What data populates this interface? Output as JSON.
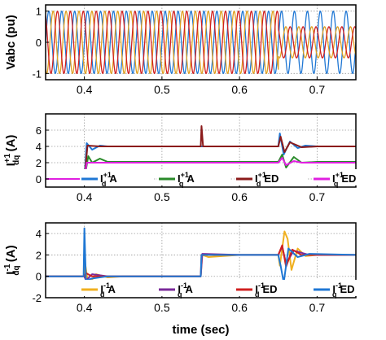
{
  "figure": {
    "xlabel": "time (sec)"
  },
  "chart_data": [
    {
      "type": "line",
      "ylabel": "Vabc (pu)",
      "xlim": [
        0.35,
        0.75
      ],
      "ylim": [
        -1.2,
        1.2
      ],
      "xticks": [
        0.4,
        0.5,
        0.6,
        0.7
      ],
      "yticks": [
        -1,
        0,
        1
      ],
      "grid": true,
      "legend": "none",
      "description": "three-phase sinusoidal voltages, amplitude 1 pu until 0.65 s, then unbalanced (one phase 1 pu, two phases about 0.5 pu)",
      "series": [
        {
          "color": "#1f77d4",
          "amplitude_before": 1.0,
          "amplitude_after": 1.0,
          "frequency_hz": 60,
          "phase_deg": 0
        },
        {
          "color": "#e0a020",
          "amplitude_before": 1.0,
          "amplitude_after": 0.5,
          "frequency_hz": 60,
          "phase_deg": -120
        },
        {
          "color": "#d02020",
          "amplitude_before": 1.0,
          "amplitude_after": 0.5,
          "frequency_hz": 60,
          "phase_deg": 120
        }
      ]
    },
    {
      "type": "line",
      "ylabel": "I",
      "ylabel_sub": "dq",
      "ylabel_sup": "+1",
      "ylabel_unit": "(A)",
      "xlim": [
        0.35,
        0.75
      ],
      "ylim": [
        -1,
        8
      ],
      "xticks": [
        0.4,
        0.5,
        0.6,
        0.7
      ],
      "yticks": [
        0,
        2,
        4,
        6
      ],
      "grid": true,
      "legend": "bottom",
      "series": [
        {
          "name_base": "I",
          "name_sub": "d",
          "name_sup": "+1",
          "name_suffix": "A",
          "color": "#1f77d4",
          "points": [
            [
              0.35,
              0
            ],
            [
              0.4,
              0
            ],
            [
              0.403,
              4.4
            ],
            [
              0.41,
              3.6
            ],
            [
              0.42,
              4.1
            ],
            [
              0.43,
              4.0
            ],
            [
              0.65,
              4.0
            ],
            [
              0.652,
              5.6
            ],
            [
              0.657,
              3.0
            ],
            [
              0.665,
              4.6
            ],
            [
              0.675,
              3.8
            ],
            [
              0.685,
              4.1
            ],
            [
              0.7,
              4.0
            ],
            [
              0.75,
              4.0
            ]
          ]
        },
        {
          "name_base": "I",
          "name_sub": "q",
          "name_sup": "+1",
          "name_suffix": "A",
          "color": "#2a8a2a",
          "points": [
            [
              0.35,
              0
            ],
            [
              0.4,
              0
            ],
            [
              0.405,
              2.8
            ],
            [
              0.41,
              2.0
            ],
            [
              0.42,
              2.5
            ],
            [
              0.43,
              2.1
            ],
            [
              0.45,
              2.1
            ],
            [
              0.65,
              2.1
            ],
            [
              0.655,
              3.0
            ],
            [
              0.66,
              1.4
            ],
            [
              0.67,
              2.7
            ],
            [
              0.68,
              2.0
            ],
            [
              0.7,
              2.1
            ],
            [
              0.75,
              2.1
            ]
          ]
        },
        {
          "name_base": "I",
          "name_sub": "d",
          "name_sup": "+1",
          "name_suffix": "ED",
          "color": "#8b1a1a",
          "points": [
            [
              0.35,
              0
            ],
            [
              0.4,
              0
            ],
            [
              0.404,
              4.1
            ],
            [
              0.42,
              4.0
            ],
            [
              0.55,
              4.0
            ],
            [
              0.551,
              6.5
            ],
            [
              0.553,
              4.0
            ],
            [
              0.65,
              4.0
            ],
            [
              0.653,
              5.2
            ],
            [
              0.658,
              3.3
            ],
            [
              0.665,
              4.5
            ],
            [
              0.68,
              3.9
            ],
            [
              0.7,
              4.0
            ],
            [
              0.75,
              4.0
            ]
          ]
        },
        {
          "name_base": "I",
          "name_sub": "q",
          "name_sup": "+1",
          "name_suffix": "ED",
          "color": "#e020e0",
          "points": [
            [
              0.35,
              0
            ],
            [
              0.4,
              0
            ],
            [
              0.403,
              2.0
            ],
            [
              0.45,
              2.0
            ],
            [
              0.65,
              2.0
            ],
            [
              0.655,
              2.6
            ],
            [
              0.66,
              1.7
            ],
            [
              0.67,
              2.2
            ],
            [
              0.68,
              2.0
            ],
            [
              0.75,
              2.0
            ]
          ]
        }
      ]
    },
    {
      "type": "line",
      "ylabel": "I",
      "ylabel_sub": "dq",
      "ylabel_sup": "-1",
      "ylabel_unit": "(A)",
      "xlim": [
        0.35,
        0.75
      ],
      "ylim": [
        -2,
        5
      ],
      "xticks": [
        0.4,
        0.5,
        0.6,
        0.7
      ],
      "yticks": [
        -2,
        0,
        2,
        4
      ],
      "grid": true,
      "legend": "bottom",
      "series": [
        {
          "name_base": "I",
          "name_sub": "d",
          "name_sup": "-1",
          "name_suffix": "A",
          "color": "#f0b020",
          "points": [
            [
              0.35,
              0
            ],
            [
              0.4,
              0
            ],
            [
              0.401,
              1.2
            ],
            [
              0.405,
              -0.8
            ],
            [
              0.415,
              0.2
            ],
            [
              0.43,
              -0.1
            ],
            [
              0.45,
              0
            ],
            [
              0.55,
              0
            ],
            [
              0.552,
              2.0
            ],
            [
              0.56,
              1.8
            ],
            [
              0.6,
              2.0
            ],
            [
              0.65,
              2.0
            ],
            [
              0.652,
              1.0
            ],
            [
              0.658,
              4.2
            ],
            [
              0.662,
              3.5
            ],
            [
              0.667,
              0.6
            ],
            [
              0.675,
              2.6
            ],
            [
              0.685,
              1.9
            ],
            [
              0.7,
              2.0
            ],
            [
              0.75,
              2.0
            ]
          ]
        },
        {
          "name_base": "I",
          "name_sub": "q",
          "name_sup": "-1",
          "name_suffix": "A",
          "color": "#7a2a9a",
          "points": [
            [
              0.35,
              0
            ],
            [
              0.4,
              0
            ],
            [
              0.402,
              -0.4
            ],
            [
              0.41,
              0.2
            ],
            [
              0.43,
              0
            ],
            [
              0.55,
              0
            ],
            [
              0.552,
              2.1
            ],
            [
              0.6,
              2.0
            ],
            [
              0.65,
              2.0
            ],
            [
              0.655,
              2.8
            ],
            [
              0.66,
              1.2
            ],
            [
              0.67,
              2.4
            ],
            [
              0.69,
              2.0
            ],
            [
              0.75,
              2.0
            ]
          ]
        },
        {
          "name_base": "I",
          "name_sub": "d",
          "name_sup": "-1",
          "name_suffix": "ED",
          "color": "#d02020",
          "points": [
            [
              0.35,
              0
            ],
            [
              0.4,
              0
            ],
            [
              0.402,
              0.3
            ],
            [
              0.41,
              0
            ],
            [
              0.55,
              0
            ],
            [
              0.551,
              2.0
            ],
            [
              0.65,
              2.0
            ],
            [
              0.655,
              2.9
            ],
            [
              0.66,
              0.9
            ],
            [
              0.668,
              2.5
            ],
            [
              0.68,
              2.0
            ],
            [
              0.75,
              2.0
            ]
          ]
        },
        {
          "name_base": "I",
          "name_sub": "q",
          "name_sup": "-1",
          "name_suffix": "ED",
          "color": "#1f77d4",
          "points": [
            [
              0.35,
              0
            ],
            [
              0.399,
              0
            ],
            [
              0.4,
              4.5
            ],
            [
              0.402,
              -0.4
            ],
            [
              0.41,
              -0.2
            ],
            [
              0.43,
              0
            ],
            [
              0.55,
              0
            ],
            [
              0.551,
              2.0
            ],
            [
              0.65,
              2.0
            ],
            [
              0.653,
              1.0
            ],
            [
              0.657,
              -0.6
            ],
            [
              0.663,
              2.6
            ],
            [
              0.675,
              1.8
            ],
            [
              0.69,
              2.1
            ],
            [
              0.75,
              2.0
            ]
          ]
        }
      ]
    }
  ]
}
